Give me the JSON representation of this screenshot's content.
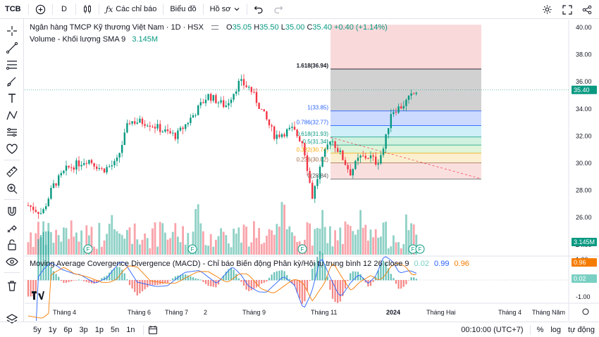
{
  "toolbar": {
    "symbol": "TCB",
    "interval": "D",
    "indicators_label": "Các chỉ báo",
    "chart_label": "Biểu đồ",
    "profile_label": "Hồ sơ"
  },
  "legend": {
    "title": "Ngân hàng TMCP Kỹ thương Việt Nam · 1D · HSX",
    "o_label": "O",
    "o": "35.05",
    "h_label": "H",
    "h": "35.50",
    "l_label": "L",
    "l": "35.00",
    "c_label": "C",
    "c": "35.40",
    "change": "+0.40 (+1.14%)",
    "volume_label": "Volume - Khối lượng SMA 9",
    "volume_value": "3.145M"
  },
  "macd_legend": {
    "label": "Moving Average Covergence Divergence (MACD) - Chỉ báo Biến động Phân kỳ/Hội tụ trung bình 12 26 close 9",
    "v1": "0.02",
    "v2": "0.99",
    "v3": "0.96"
  },
  "price_axis": [
    "40.00",
    "38.00",
    "36.00",
    "34.00",
    "32.00",
    "30.00",
    "28.00",
    "26.00",
    "24.00"
  ],
  "macd_axis": [
    "1.00",
    "-1.00"
  ],
  "current_price": "35.40",
  "volume_tag": "3.145M",
  "macd_tag_1": "0.96",
  "macd_tag_2": "0.02",
  "fib_levels": [
    {
      "label": "1.618(36.94)",
      "color": "#131722"
    },
    {
      "label": "1(33.85)",
      "color": "#2962ff"
    },
    {
      "label": "0.786(32.77)",
      "color": "#2962ff"
    },
    {
      "label": "0.618(31.93)",
      "color": "#089981"
    },
    {
      "label": "0.5(31.34)",
      "color": "#089981"
    },
    {
      "label": "0.382(30.74)",
      "color": "#f7a600"
    },
    {
      "label": "0.236(30.02)",
      "color": "#9c6644"
    },
    {
      "label": "0(28.84)",
      "color": "#555"
    }
  ],
  "x_axis": [
    "Tháng 4",
    "Tháng 6",
    "Tháng 7",
    "2",
    "Tháng 9",
    "Tháng 11",
    "2024",
    "Tháng Hai",
    "Tháng 4",
    "Tháng Năm"
  ],
  "timeframes": [
    "5y",
    "1y",
    "6p",
    "3p",
    "1p",
    "5n",
    "1n"
  ],
  "bottom_right": {
    "time": "00:10:00 (UTC+7)",
    "percent": "%",
    "log": "log",
    "auto": "tự động"
  },
  "earnings_marker": "F",
  "colors": {
    "up": "#089981",
    "down": "#f23645",
    "accent": "#2962ff"
  }
}
